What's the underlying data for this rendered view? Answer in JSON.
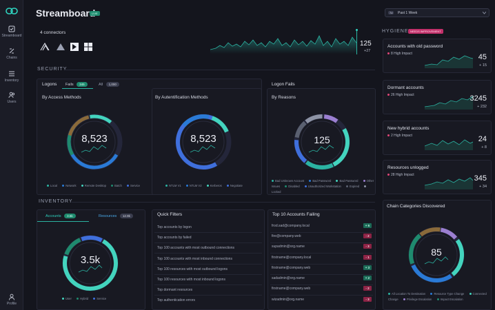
{
  "app": {
    "title": "Streamboard",
    "live": "LIVE"
  },
  "sidebar": {
    "items": [
      "Streamboard",
      "Chains",
      "Inventory",
      "Users"
    ],
    "profile": "Profile"
  },
  "period": {
    "label": "Past 1 Week",
    "tag": "7d"
  },
  "connectors": {
    "label": "4 connectors",
    "value": "125",
    "delta": "+27"
  },
  "sections": {
    "security": "SECURITY",
    "inventory": "INVENTORY",
    "hygiene": "HYGIENE",
    "hygiene_badge": "NEEDS IMPROVEMENT"
  },
  "logons": {
    "label": "Logons",
    "tabs": [
      {
        "label": "Fails",
        "count": "345"
      },
      {
        "label": "All",
        "count": "1,000"
      }
    ]
  },
  "logon_fails_label": "Logon Fails",
  "rings": [
    {
      "title": "By Access Methods",
      "value": "8,523",
      "legend": [
        "Local",
        "Network",
        "Remote Desktop",
        "Batch",
        "Service"
      ],
      "colors": [
        "#2bb3a2",
        "#2a7ad6",
        "#43d4be",
        "#1f8a6e",
        "#3f6fdc"
      ]
    },
    {
      "title": "By Autentification Methods",
      "value": "8,523",
      "legend": [
        "NTLM V1",
        "NTLM V2",
        "Kerberos",
        "Negotiate"
      ],
      "colors": [
        "#2bb3a2",
        "#2a7ad6",
        "#43d4be",
        "#3f6fdc"
      ]
    },
    {
      "title": "By Reasons",
      "value": "125",
      "legend": [
        "Bad Unknown Account",
        "Bad Password",
        "Bad Password",
        "Other Issues",
        "Disabled",
        "Unauthorized Workstation",
        "Expired",
        "Locked"
      ],
      "colors": [
        "#2bb3a2",
        "#2a7ad6",
        "#43d4be",
        "#9b7fd1",
        "#1f8a6e",
        "#3f6fdc",
        "#5a6070",
        "#8d93a5"
      ]
    }
  ],
  "inventory": {
    "tabs": [
      {
        "label": "Accounts",
        "count": "3.5k"
      },
      {
        "label": "Resources",
        "count": "12.9k"
      }
    ],
    "value": "3.5k",
    "legend": [
      "User",
      "Hybrid",
      "Service"
    ]
  },
  "quick_filters": {
    "title": "Quick Filters",
    "items": [
      "Top accounts by logon",
      "Top accounts by failed",
      "Top 100 accounts with most outbound connections",
      "Top 100 accounts with most inbound connections",
      "Top 100 resources with most outbound logons",
      "Top 100 resources with most inbound logons",
      "Top dormant resources",
      "Top authentication errors"
    ]
  },
  "top_failing": {
    "title": "Top 10 Accounts Failing",
    "items": [
      {
        "email": "frod.sad@company.local",
        "delta": "+ 6",
        "dir": "up"
      },
      {
        "email": "fire@company.web",
        "delta": "- 2",
        "dir": "dn"
      },
      {
        "email": "supadmin@org.name",
        "delta": "- 3",
        "dir": "dn"
      },
      {
        "email": "firstname@company.local",
        "delta": "- 1",
        "dir": "dn"
      },
      {
        "email": "firstname@company.web",
        "delta": "+ 3",
        "dir": "up"
      },
      {
        "email": "sadadmin@org.name",
        "delta": "+ 2",
        "dir": "up"
      },
      {
        "email": "firstname@company.web",
        "delta": "- 2",
        "dir": "dn"
      },
      {
        "email": "wizadmin@org.name",
        "delta": "- 3",
        "dir": "dn"
      }
    ]
  },
  "hygiene_cards": [
    {
      "title": "Accounts with old password",
      "impact": "8 High Impact",
      "value": "45",
      "delta": "+ 15"
    },
    {
      "title": "Dormant accounts",
      "impact": "26 High Impact",
      "value": "3245",
      "delta": "+ 232"
    },
    {
      "title": "New hybrid accounts",
      "impact": "2 High Impact",
      "value": "24",
      "delta": "+ 8"
    },
    {
      "title": "Resources unlogged",
      "impact": "28 High Impact",
      "value": "345",
      "delta": "+ 34"
    }
  ],
  "chain_categories": {
    "title": "Chain Categories Discovered",
    "value": "85",
    "legend": [
      "All Location To Destination",
      "Resource Type Change",
      "Connected Change",
      "Privilege Escalation",
      "Impact Escalation"
    ],
    "colors": [
      "#2bb3a2",
      "#2a7ad6",
      "#43d4be",
      "#9b7fd1",
      "#1f8a6e"
    ]
  }
}
